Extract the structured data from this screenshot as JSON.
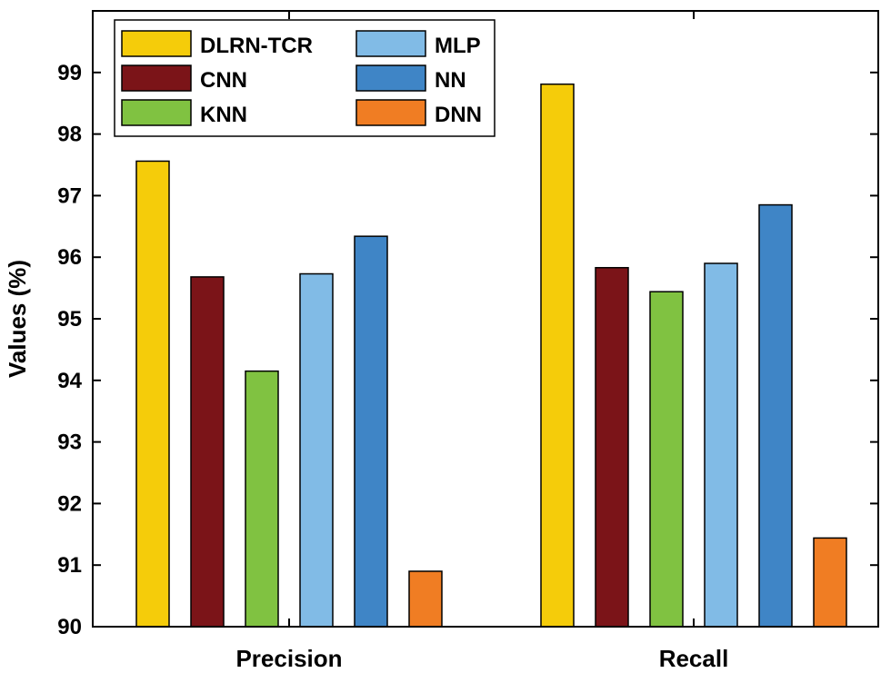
{
  "chart_data": {
    "type": "bar",
    "title": "",
    "xlabel": "",
    "ylabel": "Values (%)",
    "ylim": [
      90,
      100
    ],
    "yticks": [
      "90",
      "91",
      "92",
      "93",
      "94",
      "95",
      "96",
      "97",
      "98",
      "99"
    ],
    "categories": [
      "Precision",
      "Recall"
    ],
    "grid": false,
    "legend_position": "top-left",
    "series": [
      {
        "name": "DLRN-TCR",
        "color": "#f5cc0a",
        "values": [
          97.56,
          98.81
        ]
      },
      {
        "name": "CNN",
        "color": "#7b1418",
        "values": [
          95.68,
          95.83
        ]
      },
      {
        "name": "KNN",
        "color": "#80c241",
        "values": [
          94.15,
          95.44
        ]
      },
      {
        "name": "MLP",
        "color": "#81bbe6",
        "values": [
          95.73,
          95.9
        ]
      },
      {
        "name": "NN",
        "color": "#3f85c6",
        "values": [
          96.34,
          96.85
        ]
      },
      {
        "name": "DNN",
        "color": "#f07d23",
        "values": [
          90.9,
          91.44
        ]
      }
    ]
  }
}
